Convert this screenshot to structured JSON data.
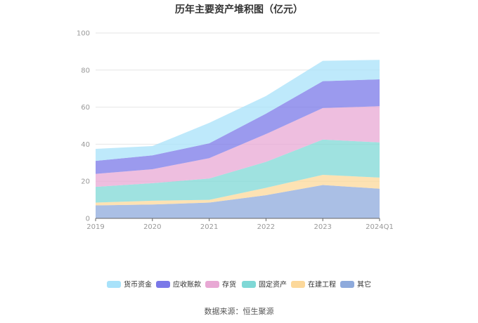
{
  "chart_data": {
    "type": "area",
    "stacked": true,
    "title": "历年主要资产堆积图（亿元）",
    "x": [
      "2019",
      "2020",
      "2021",
      "2022",
      "2023",
      "2024Q1"
    ],
    "ylim": [
      0,
      100
    ],
    "yticks": [
      0,
      20,
      40,
      60,
      80,
      100
    ],
    "grid": true,
    "legend_position": "bottom",
    "series": [
      {
        "name": "其它",
        "color": "#8eaadc",
        "values": [
          7.0,
          7.5,
          8.5,
          12.5,
          18.0,
          16.0
        ]
      },
      {
        "name": "在建工程",
        "color": "#fcd89a",
        "values": [
          1.5,
          2.0,
          1.5,
          4.0,
          5.5,
          6.0
        ]
      },
      {
        "name": "固定资产",
        "color": "#7fd8d6",
        "values": [
          8.5,
          9.5,
          11.5,
          14.0,
          19.0,
          19.0
        ]
      },
      {
        "name": "存货",
        "color": "#e8a8d4",
        "values": [
          7.0,
          7.5,
          11.0,
          15.0,
          17.0,
          19.5
        ]
      },
      {
        "name": "应收账款",
        "color": "#7a78e8",
        "values": [
          7.0,
          7.5,
          8.0,
          11.0,
          14.5,
          14.5
        ]
      },
      {
        "name": "货币资金",
        "color": "#a8e2fa",
        "values": [
          6.5,
          5.0,
          11.0,
          9.5,
          11.0,
          10.5
        ]
      }
    ],
    "legend_order": [
      "货币资金",
      "应收账款",
      "存货",
      "固定资产",
      "在建工程",
      "其它"
    ]
  },
  "source": "数据来源：恒生聚源"
}
